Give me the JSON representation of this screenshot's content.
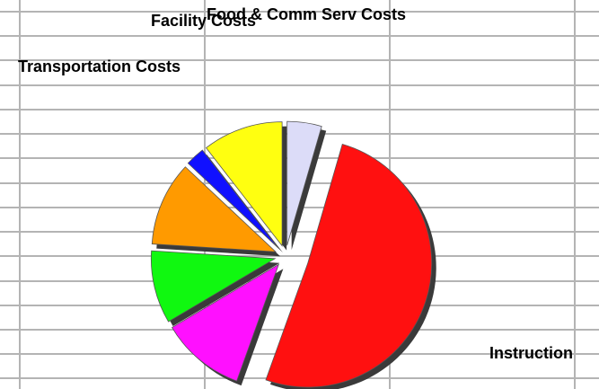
{
  "chart_data": {
    "type": "pie",
    "categories": [
      "Food & Comm Serv Costs",
      "Instruction",
      null,
      null,
      null,
      "Transportation Costs",
      "Facility Costs"
    ],
    "values": [
      4.5,
      51,
      11,
      9.5,
      11,
      2.5,
      10.5
    ],
    "colors": [
      "#dcdcf8",
      "#ff1010",
      "#ff10ff",
      "#10f810",
      "#ff9a00",
      "#1010ff",
      "#ffff10"
    ]
  }
}
